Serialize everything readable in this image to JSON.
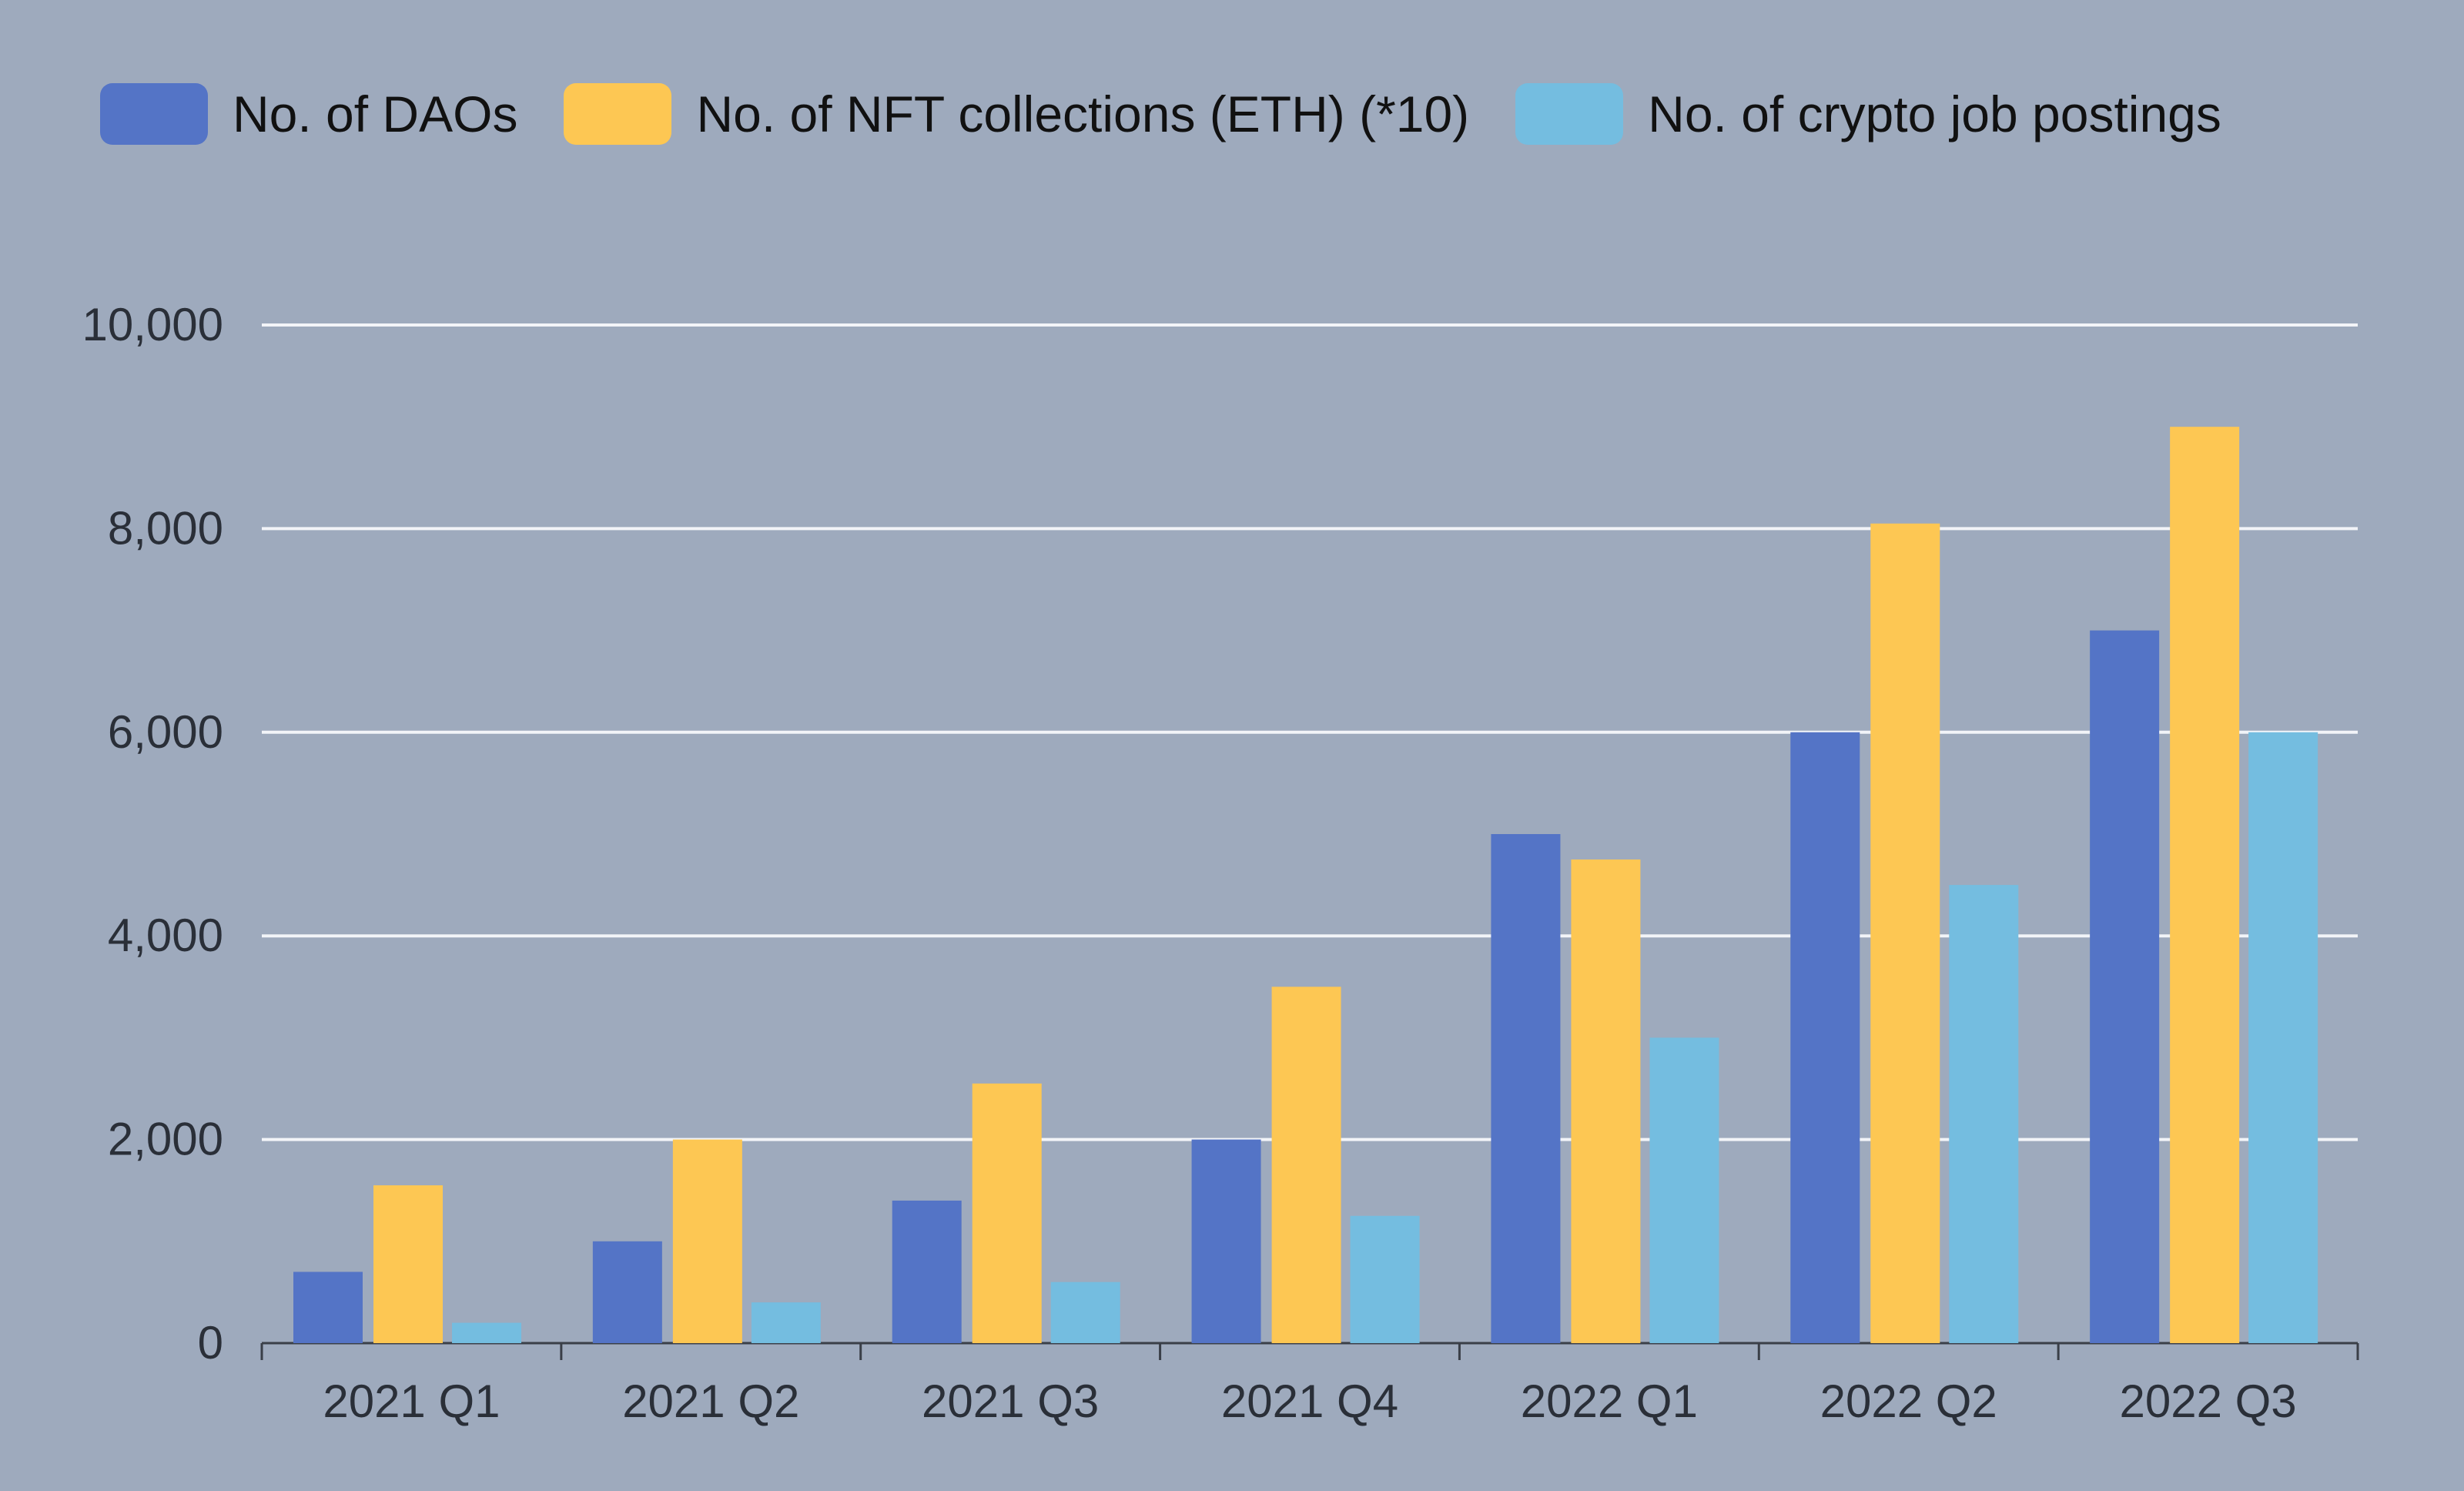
{
  "chart_data": {
    "type": "bar",
    "title": "",
    "xlabel": "",
    "ylabel": "",
    "categories": [
      "2021 Q1",
      "2021 Q2",
      "2021 Q3",
      "2021 Q4",
      "2022 Q1",
      "2022 Q2",
      "2022 Q3"
    ],
    "series": [
      {
        "name": "No. of DAOs",
        "color": "#5474c6",
        "values": [
          700,
          1000,
          1400,
          2000,
          5000,
          6000,
          7000
        ]
      },
      {
        "name": "No. of NFT collections (ETH) (*10)",
        "color": "#fdc753",
        "values": [
          1550,
          2000,
          2550,
          3500,
          4750,
          8050,
          9000
        ]
      },
      {
        "name": "No. of crypto job postings",
        "color": "#74bde0",
        "values": [
          200,
          400,
          600,
          1250,
          3000,
          4500,
          6000
        ]
      }
    ],
    "ylim": [
      0,
      10000
    ],
    "yticks": [
      "0",
      "2,000",
      "4,000",
      "6,000",
      "8,000",
      "10,000"
    ],
    "ytick_values": [
      0,
      2000,
      4000,
      6000,
      8000,
      10000
    ],
    "grid": true,
    "legend": "top",
    "background": "#9eaabd"
  }
}
